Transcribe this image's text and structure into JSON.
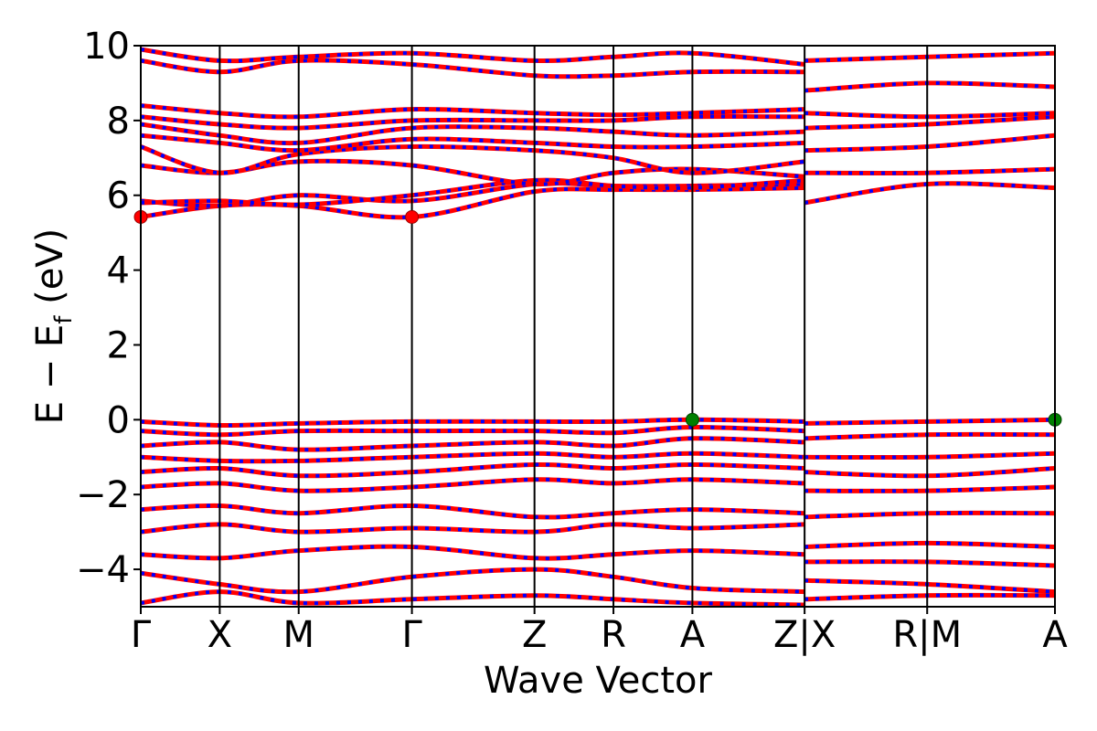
{
  "chart_data": {
    "type": "line",
    "title": "",
    "xlabel": "Wave Vector",
    "ylabel": "E − E_f (eV)",
    "ylabel_main": "E  −  E",
    "ylabel_sub": "f",
    "ylabel_unit": " (eV)",
    "ylim": [
      -5,
      10
    ],
    "yticks": [
      -4,
      -2,
      0,
      2,
      4,
      6,
      8,
      10
    ],
    "ytick_labels": [
      "−4",
      "−2",
      "0",
      "2",
      "4",
      "6",
      "8",
      "10"
    ],
    "x_range": [
      0,
      8.8
    ],
    "kpath_labels": [
      {
        "x": 0.0,
        "label": "Γ"
      },
      {
        "x": 0.76,
        "label": "X"
      },
      {
        "x": 1.52,
        "label": "M"
      },
      {
        "x": 2.61,
        "label": "Γ"
      },
      {
        "x": 3.79,
        "label": "Z"
      },
      {
        "x": 4.55,
        "label": "R"
      },
      {
        "x": 5.31,
        "label": "A"
      },
      {
        "x": 6.39,
        "label": "Z|X"
      },
      {
        "x": 7.57,
        "label": "R|M"
      },
      {
        "x": 8.8,
        "label": "A"
      }
    ],
    "vertical_lines": [
      0.76,
      1.52,
      2.61,
      3.79,
      4.55,
      5.31,
      6.39,
      7.57
    ],
    "colors": {
      "spin_up": "#ff0000",
      "spin_down": "#0000ff",
      "vbm": "#008000",
      "cbm": "#ff0000"
    },
    "series": [
      {
        "values": [
          [
            0.0,
            5.42
          ],
          [
            0.76,
            5.72
          ],
          [
            1.52,
            5.72
          ],
          [
            2.61,
            5.42
          ],
          [
            3.79,
            6.1
          ],
          [
            4.55,
            6.15
          ],
          [
            5.31,
            6.15
          ],
          [
            6.39,
            6.2
          ]
        ]
      },
      {
        "values": [
          [
            0.0,
            5.85
          ],
          [
            0.76,
            5.72
          ],
          [
            1.52,
            6.0
          ],
          [
            2.61,
            5.85
          ],
          [
            3.79,
            6.3
          ],
          [
            4.55,
            6.25
          ],
          [
            5.31,
            6.25
          ],
          [
            6.39,
            6.3
          ]
        ]
      },
      {
        "values": [
          [
            0.0,
            5.8
          ],
          [
            0.76,
            5.85
          ],
          [
            1.52,
            5.75
          ],
          [
            2.61,
            6.0
          ],
          [
            3.79,
            6.4
          ],
          [
            4.55,
            6.25
          ],
          [
            5.31,
            6.2
          ],
          [
            6.39,
            6.4
          ]
        ]
      },
      {
        "values": [
          [
            0.0,
            6.8
          ],
          [
            0.76,
            6.6
          ],
          [
            1.52,
            6.9
          ],
          [
            2.61,
            6.8
          ],
          [
            3.79,
            6.3
          ],
          [
            4.55,
            6.6
          ],
          [
            5.31,
            6.7
          ],
          [
            6.39,
            6.5
          ]
        ]
      },
      {
        "values": [
          [
            0.0,
            7.3
          ],
          [
            0.76,
            6.6
          ],
          [
            1.52,
            7.1
          ],
          [
            2.61,
            7.3
          ],
          [
            3.79,
            7.2
          ],
          [
            4.55,
            7.0
          ],
          [
            5.31,
            6.6
          ],
          [
            6.39,
            6.9
          ]
        ]
      },
      {
        "values": [
          [
            0.0,
            7.6
          ],
          [
            0.76,
            7.4
          ],
          [
            1.52,
            7.2
          ],
          [
            2.61,
            7.5
          ],
          [
            3.79,
            7.4
          ],
          [
            4.55,
            7.3
          ],
          [
            5.31,
            7.3
          ],
          [
            6.39,
            7.4
          ]
        ]
      },
      {
        "values": [
          [
            0.0,
            7.9
          ],
          [
            0.76,
            7.6
          ],
          [
            1.52,
            7.4
          ],
          [
            2.61,
            7.8
          ],
          [
            3.79,
            7.8
          ],
          [
            4.55,
            7.7
          ],
          [
            5.31,
            7.6
          ],
          [
            6.39,
            7.7
          ]
        ]
      },
      {
        "values": [
          [
            0.0,
            8.1
          ],
          [
            0.76,
            7.9
          ],
          [
            1.52,
            7.8
          ],
          [
            2.61,
            8.0
          ],
          [
            3.79,
            8.0
          ],
          [
            4.55,
            8.0
          ],
          [
            5.31,
            8.1
          ],
          [
            6.39,
            8.1
          ]
        ]
      },
      {
        "values": [
          [
            0.0,
            8.4
          ],
          [
            0.76,
            8.2
          ],
          [
            1.52,
            8.1
          ],
          [
            2.61,
            8.3
          ],
          [
            3.79,
            8.2
          ],
          [
            4.55,
            8.15
          ],
          [
            5.31,
            8.2
          ],
          [
            6.39,
            8.3
          ]
        ]
      },
      {
        "values": [
          [
            0.0,
            9.6
          ],
          [
            0.76,
            9.3
          ],
          [
            1.52,
            9.6
          ],
          [
            2.61,
            9.5
          ],
          [
            3.79,
            9.2
          ],
          [
            4.55,
            9.2
          ],
          [
            5.31,
            9.3
          ],
          [
            6.39,
            9.3
          ]
        ]
      },
      {
        "values": [
          [
            0.0,
            9.9
          ],
          [
            0.76,
            9.6
          ],
          [
            1.52,
            9.7
          ],
          [
            2.61,
            9.8
          ],
          [
            3.79,
            9.6
          ],
          [
            4.55,
            9.7
          ],
          [
            5.31,
            9.8
          ],
          [
            6.39,
            9.5
          ]
        ]
      },
      {
        "values": [
          [
            0.0,
            -0.05
          ],
          [
            0.76,
            -0.15
          ],
          [
            1.52,
            -0.1
          ],
          [
            2.61,
            -0.05
          ],
          [
            3.79,
            -0.05
          ],
          [
            4.55,
            -0.05
          ],
          [
            5.31,
            0.0
          ],
          [
            6.39,
            -0.05
          ]
        ]
      },
      {
        "values": [
          [
            0.0,
            -0.3
          ],
          [
            0.76,
            -0.4
          ],
          [
            1.52,
            -0.3
          ],
          [
            2.61,
            -0.3
          ],
          [
            3.79,
            -0.3
          ],
          [
            4.55,
            -0.35
          ],
          [
            5.31,
            -0.2
          ],
          [
            6.39,
            -0.3
          ]
        ]
      },
      {
        "values": [
          [
            0.0,
            -0.7
          ],
          [
            0.76,
            -0.6
          ],
          [
            1.52,
            -0.8
          ],
          [
            2.61,
            -0.7
          ],
          [
            3.79,
            -0.6
          ],
          [
            4.55,
            -0.7
          ],
          [
            5.31,
            -0.5
          ],
          [
            6.39,
            -0.6
          ]
        ]
      },
      {
        "values": [
          [
            0.0,
            -1.0
          ],
          [
            0.76,
            -1.1
          ],
          [
            1.52,
            -1.1
          ],
          [
            2.61,
            -1.0
          ],
          [
            3.79,
            -0.9
          ],
          [
            4.55,
            -1.0
          ],
          [
            5.31,
            -0.9
          ],
          [
            6.39,
            -1.0
          ]
        ]
      },
      {
        "values": [
          [
            0.0,
            -1.4
          ],
          [
            0.76,
            -1.3
          ],
          [
            1.52,
            -1.5
          ],
          [
            2.61,
            -1.4
          ],
          [
            3.79,
            -1.2
          ],
          [
            4.55,
            -1.3
          ],
          [
            5.31,
            -1.2
          ],
          [
            6.39,
            -1.3
          ]
        ]
      },
      {
        "values": [
          [
            0.0,
            -1.8
          ],
          [
            0.76,
            -1.7
          ],
          [
            1.52,
            -1.9
          ],
          [
            2.61,
            -1.8
          ],
          [
            3.79,
            -1.6
          ],
          [
            4.55,
            -1.7
          ],
          [
            5.31,
            -1.6
          ],
          [
            6.39,
            -1.7
          ]
        ]
      },
      {
        "values": [
          [
            0.0,
            -2.4
          ],
          [
            0.76,
            -2.3
          ],
          [
            1.52,
            -2.5
          ],
          [
            2.61,
            -2.3
          ],
          [
            3.79,
            -2.6
          ],
          [
            4.55,
            -2.5
          ],
          [
            5.31,
            -2.4
          ],
          [
            6.39,
            -2.5
          ]
        ]
      },
      {
        "values": [
          [
            0.0,
            -3.0
          ],
          [
            0.76,
            -2.8
          ],
          [
            1.52,
            -3.0
          ],
          [
            2.61,
            -2.9
          ],
          [
            3.79,
            -3.0
          ],
          [
            4.55,
            -2.8
          ],
          [
            5.31,
            -2.9
          ],
          [
            6.39,
            -2.8
          ]
        ]
      },
      {
        "values": [
          [
            0.0,
            -3.6
          ],
          [
            0.76,
            -3.7
          ],
          [
            1.52,
            -3.5
          ],
          [
            2.61,
            -3.4
          ],
          [
            3.79,
            -3.7
          ],
          [
            4.55,
            -3.6
          ],
          [
            5.31,
            -3.5
          ],
          [
            6.39,
            -3.6
          ]
        ]
      },
      {
        "values": [
          [
            0.0,
            -4.1
          ],
          [
            0.76,
            -4.4
          ],
          [
            1.52,
            -4.6
          ],
          [
            2.61,
            -4.2
          ],
          [
            3.79,
            -4.0
          ],
          [
            4.55,
            -4.2
          ],
          [
            5.31,
            -4.5
          ],
          [
            6.39,
            -4.6
          ]
        ]
      },
      {
        "values": [
          [
            0.0,
            -4.9
          ],
          [
            0.76,
            -4.6
          ],
          [
            1.52,
            -4.9
          ],
          [
            2.61,
            -4.8
          ],
          [
            3.79,
            -4.7
          ],
          [
            4.55,
            -4.8
          ],
          [
            5.31,
            -4.9
          ],
          [
            6.39,
            -4.95
          ]
        ]
      },
      {
        "values": [
          [
            6.39,
            5.8
          ],
          [
            7.57,
            6.3
          ],
          [
            8.8,
            6.2
          ]
        ]
      },
      {
        "values": [
          [
            6.39,
            6.6
          ],
          [
            7.57,
            6.6
          ],
          [
            8.8,
            6.7
          ]
        ]
      },
      {
        "values": [
          [
            6.39,
            7.2
          ],
          [
            7.57,
            7.3
          ],
          [
            8.8,
            7.6
          ]
        ]
      },
      {
        "values": [
          [
            6.39,
            7.8
          ],
          [
            7.57,
            7.9
          ],
          [
            8.8,
            8.1
          ]
        ]
      },
      {
        "values": [
          [
            6.39,
            8.2
          ],
          [
            7.57,
            8.1
          ],
          [
            8.8,
            8.2
          ]
        ]
      },
      {
        "values": [
          [
            6.39,
            8.8
          ],
          [
            7.57,
            9.0
          ],
          [
            8.8,
            8.9
          ]
        ]
      },
      {
        "values": [
          [
            6.39,
            9.6
          ],
          [
            7.57,
            9.7
          ],
          [
            8.8,
            9.8
          ]
        ]
      },
      {
        "values": [
          [
            6.39,
            -0.1
          ],
          [
            7.57,
            -0.05
          ],
          [
            8.8,
            0.0
          ]
        ]
      },
      {
        "values": [
          [
            6.39,
            -0.5
          ],
          [
            7.57,
            -0.4
          ],
          [
            8.8,
            -0.4
          ]
        ]
      },
      {
        "values": [
          [
            6.39,
            -1.0
          ],
          [
            7.57,
            -1.0
          ],
          [
            8.8,
            -0.9
          ]
        ]
      },
      {
        "values": [
          [
            6.39,
            -1.4
          ],
          [
            7.57,
            -1.5
          ],
          [
            8.8,
            -1.3
          ]
        ]
      },
      {
        "values": [
          [
            6.39,
            -1.9
          ],
          [
            7.57,
            -1.9
          ],
          [
            8.8,
            -1.8
          ]
        ]
      },
      {
        "values": [
          [
            6.39,
            -2.6
          ],
          [
            7.57,
            -2.5
          ],
          [
            8.8,
            -2.5
          ]
        ]
      },
      {
        "values": [
          [
            6.39,
            -3.4
          ],
          [
            7.57,
            -3.3
          ],
          [
            8.8,
            -3.4
          ]
        ]
      },
      {
        "values": [
          [
            6.39,
            -3.8
          ],
          [
            7.57,
            -3.8
          ],
          [
            8.8,
            -3.9
          ]
        ]
      },
      {
        "values": [
          [
            6.39,
            -4.3
          ],
          [
            7.57,
            -4.4
          ],
          [
            8.8,
            -4.6
          ]
        ]
      },
      {
        "values": [
          [
            6.39,
            -4.8
          ],
          [
            7.57,
            -4.7
          ],
          [
            8.8,
            -4.7
          ]
        ]
      }
    ],
    "markers": [
      {
        "x": 0.0,
        "y": 5.42,
        "kind": "cbm"
      },
      {
        "x": 2.61,
        "y": 5.42,
        "kind": "cbm"
      },
      {
        "x": 5.31,
        "y": 0.0,
        "kind": "vbm"
      },
      {
        "x": 8.8,
        "y": 0.0,
        "kind": "vbm"
      }
    ],
    "grid": false,
    "legend": "none"
  }
}
